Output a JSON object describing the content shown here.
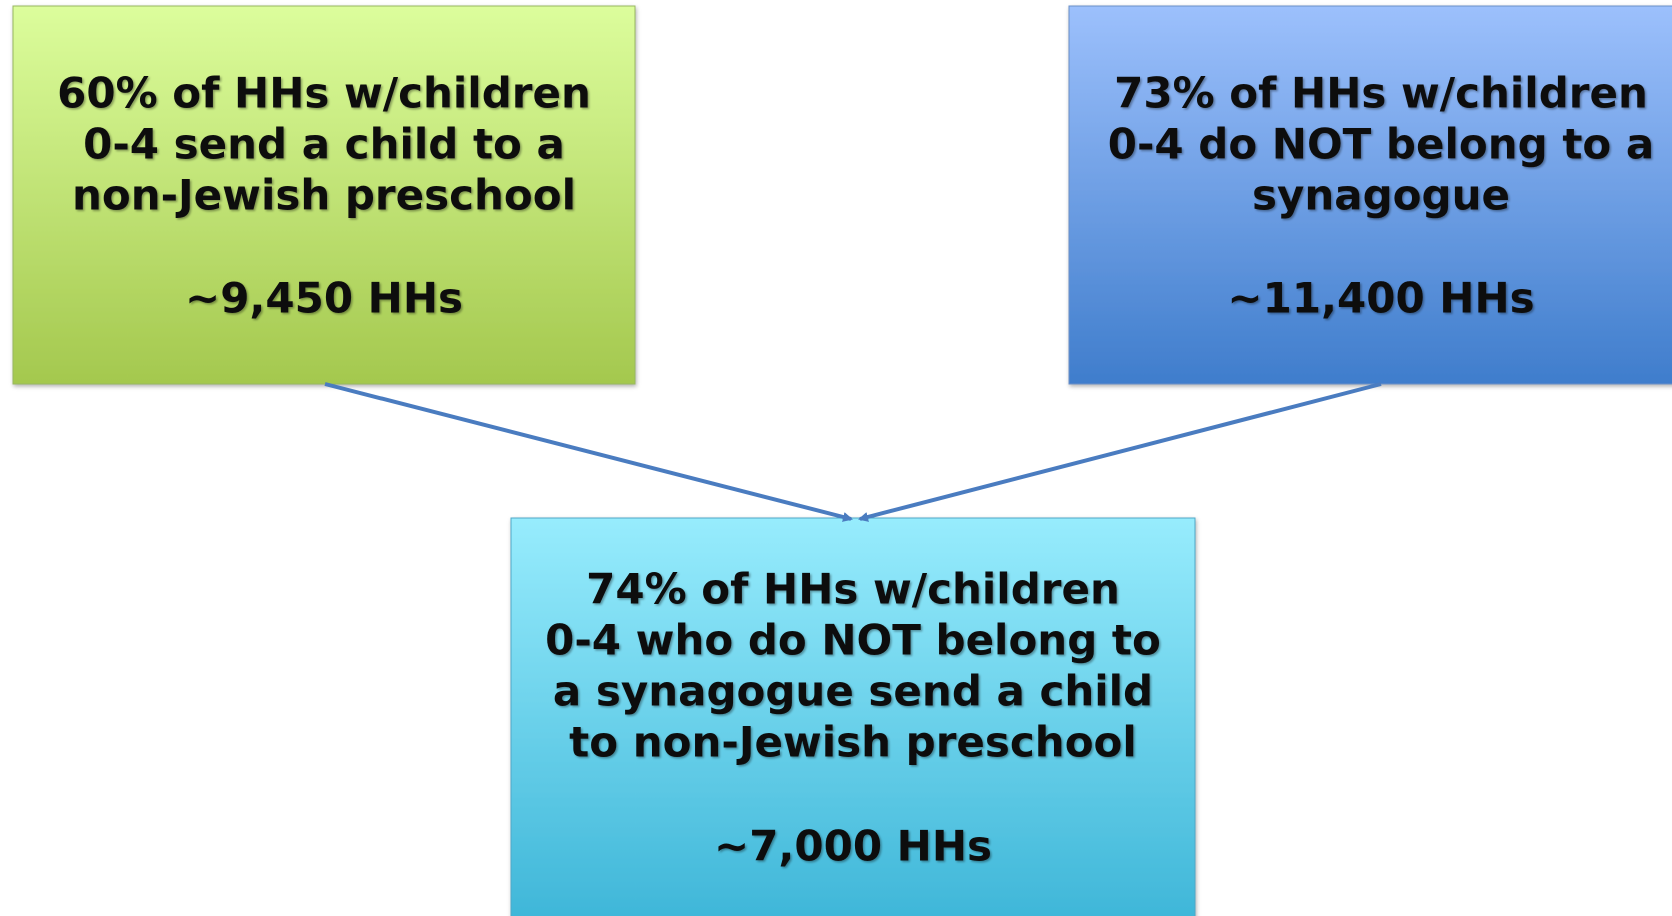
{
  "nodes": [
    {
      "lines": [
        "60% of HHs w/children",
        "0-4 send a child to a",
        "non-Jewish preschool"
      ],
      "count": "~9,450 HHs"
    },
    {
      "lines": [
        "73% of HHs w/children",
        "0-4 do NOT belong to a",
        "synagogue"
      ],
      "count": "~11,400 HHs"
    },
    {
      "lines": [
        "74% of HHs w/children",
        "0-4 who do NOT belong to",
        "a synagogue send a child",
        "to non-Jewish preschool"
      ],
      "count": "~7,000 HHs"
    }
  ]
}
